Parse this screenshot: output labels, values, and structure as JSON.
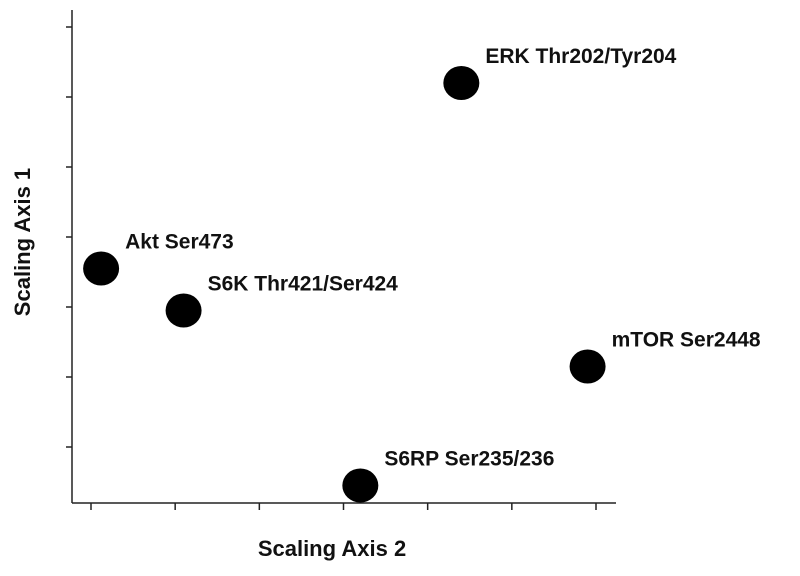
{
  "chart_data": {
    "type": "scatter",
    "title": "",
    "xlabel": "Scaling Axis 2",
    "ylabel": "Scaling Axis 1",
    "x_ticks": [
      0,
      1,
      2,
      3,
      4,
      5,
      6
    ],
    "y_ticks": [
      1,
      2,
      3,
      4,
      5,
      6,
      7
    ],
    "xlim": [
      -0.2,
      6.2
    ],
    "ylim": [
      0,
      7.5
    ],
    "grid": false,
    "legend": "none",
    "point_color": "#000000",
    "points": [
      {
        "label": "ERK Thr202/Tyr204",
        "x": 4.4,
        "y": 6.2
      },
      {
        "label": "Akt Ser473",
        "x": 0.12,
        "y": 3.55
      },
      {
        "label": "S6K Thr421/Ser424",
        "x": 1.1,
        "y": 2.95
      },
      {
        "label": "mTOR Ser2448",
        "x": 5.9,
        "y": 2.15
      },
      {
        "label": "S6RP Ser235/236",
        "x": 3.2,
        "y": 0.45
      }
    ]
  }
}
